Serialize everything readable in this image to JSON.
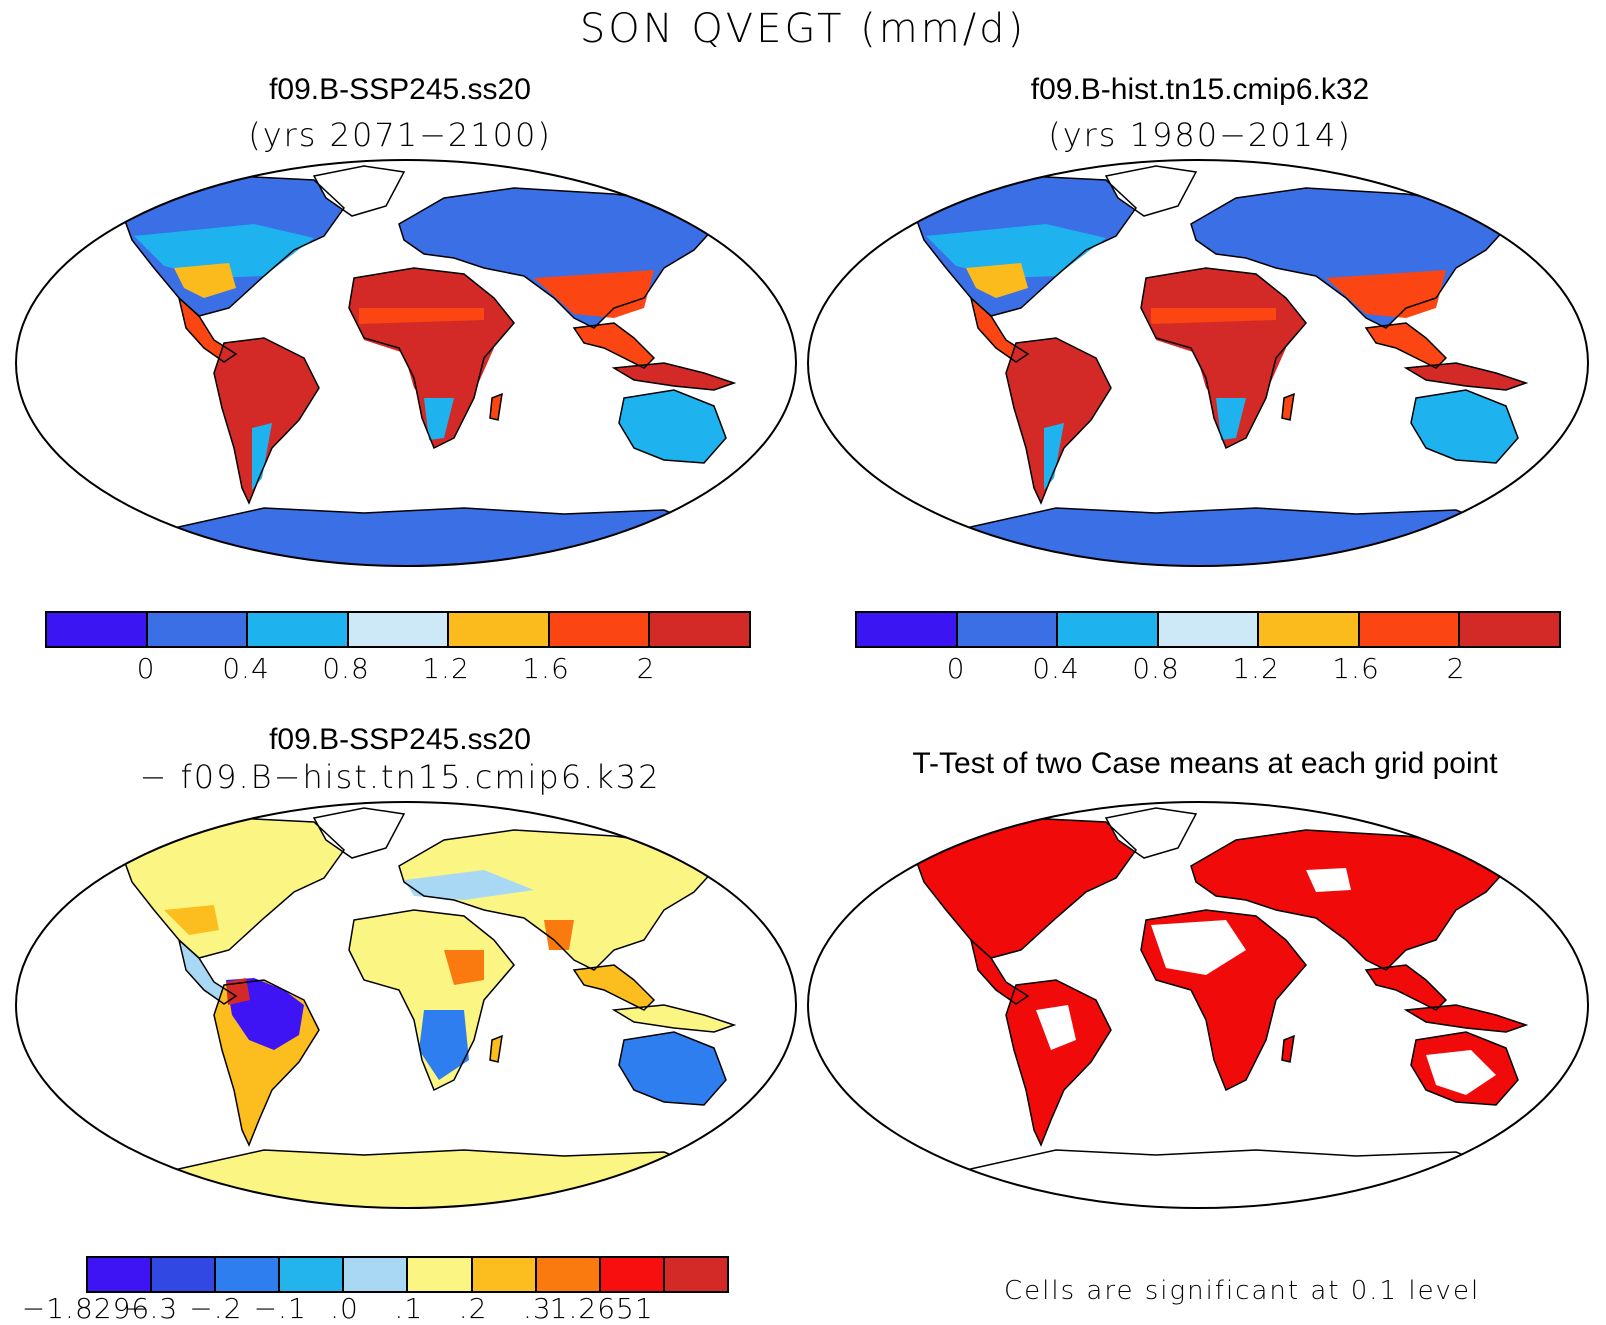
{
  "figure": {
    "title": "SON QVEGT (mm/d)"
  },
  "panels": {
    "top_left": {
      "title": "f09.B-SSP245.ss20",
      "subtitle": "(yrs 2071−2100)"
    },
    "top_right": {
      "title": "f09.B-hist.tn15.cmip6.k32",
      "subtitle": "(yrs 1980−2014)"
    },
    "bottom_left": {
      "title": "f09.B-SSP245.ss20",
      "subtitle": "− f09.B−hist.tn15.cmip6.k32"
    },
    "bottom_right": {
      "title": "T-Test of two Case means at each grid point",
      "note": "Cells are significant at 0.1 level"
    }
  },
  "colorbars": {
    "mean": {
      "colors": [
        "#3b16f2",
        "#3a6fe6",
        "#1eb2ef",
        "#cde9f7",
        "#fbbb1c",
        "#fb4613",
        "#d42a27"
      ],
      "labels": [
        "0",
        "0.4",
        "0.8",
        "1.2",
        "1.6",
        "2"
      ]
    },
    "diff": {
      "colors": [
        "#3f14f4",
        "#3248e3",
        "#2f7ef0",
        "#23b4ee",
        "#a9d8f4",
        "#fbf584",
        "#fbbe1e",
        "#fb7a10",
        "#f60f0e",
        "#d42a27"
      ],
      "labels": [
        "−1.8296",
        "−.3",
        "−.2",
        "−.1",
        ".0",
        ".1",
        ".2",
        ".3",
        "1.2651"
      ]
    }
  },
  "map_colors": {
    "ocean": "#ffffff",
    "coast": "#000000",
    "sig": "#f00a0a"
  }
}
